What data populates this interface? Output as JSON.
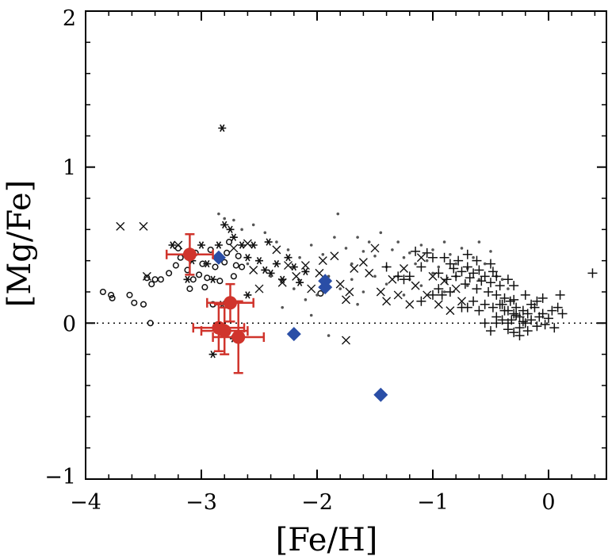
{
  "chart_data": {
    "type": "scatter",
    "title": "",
    "xlabel": "[Fe/H]",
    "ylabel": "[Mg/Fe]",
    "xlim": [
      -4,
      0.5
    ],
    "ylim": [
      -1,
      2
    ],
    "x_ticks": [
      -4,
      -3,
      -2,
      -1,
      0
    ],
    "y_ticks": [
      -1,
      0,
      1,
      2
    ],
    "x_tick_labels": [
      "−4",
      "−3",
      "−2",
      "−1",
      "0"
    ],
    "y_tick_labels": [
      "−1",
      "0",
      "1",
      "2"
    ],
    "reference_line": {
      "y": 0,
      "style": "dotted"
    },
    "grid": false,
    "legend": "none",
    "colors": {
      "red": "#d0342c",
      "blue": "#2a4ea6",
      "black": "#111111"
    },
    "series": [
      {
        "marker": "open-circle",
        "color": "#111111",
        "points": [
          [
            -3.85,
            0.2
          ],
          [
            -3.78,
            0.18
          ],
          [
            -3.77,
            0.16
          ],
          [
            -3.62,
            0.18
          ],
          [
            -3.58,
            0.13
          ],
          [
            -3.5,
            0.12
          ],
          [
            -3.47,
            0.29
          ],
          [
            -3.43,
            0.25
          ],
          [
            -3.4,
            0.28
          ],
          [
            -3.35,
            0.28
          ],
          [
            -3.28,
            0.32
          ],
          [
            -3.22,
            0.37
          ],
          [
            -3.18,
            0.42
          ],
          [
            -3.12,
            0.34
          ],
          [
            -3.07,
            0.28
          ],
          [
            -3.05,
            0.45
          ],
          [
            -3.02,
            0.31
          ],
          [
            -2.99,
            0.38
          ],
          [
            -2.95,
            0.29
          ],
          [
            -2.92,
            0.47
          ],
          [
            -2.88,
            0.36
          ],
          [
            -2.85,
            0.42
          ],
          [
            -2.84,
            0.27
          ],
          [
            -2.8,
            0.39
          ],
          [
            -2.78,
            0.45
          ],
          [
            -2.76,
            0.52
          ],
          [
            -2.72,
            0.3
          ],
          [
            -2.7,
            0.37
          ],
          [
            -2.68,
            0.43
          ],
          [
            -2.65,
            0.36
          ],
          [
            -2.97,
            0.23
          ],
          [
            -3.1,
            0.22
          ],
          [
            -3.2,
            0.48
          ],
          [
            -2.9,
            0.12
          ],
          [
            -3.44,
            0.0
          ],
          [
            -1.97,
            0.19
          ]
        ]
      },
      {
        "marker": "cross-x",
        "color": "#111111",
        "points": [
          [
            -3.7,
            0.62
          ],
          [
            -3.5,
            0.62
          ],
          [
            -3.47,
            0.3
          ],
          [
            -3.2,
            0.5
          ],
          [
            -2.72,
            0.48
          ],
          [
            -2.6,
            0.51
          ],
          [
            -2.5,
            0.22
          ],
          [
            -2.35,
            0.47
          ],
          [
            -2.25,
            0.37
          ],
          [
            -2.18,
            0.3
          ],
          [
            -2.1,
            0.37
          ],
          [
            -2.05,
            0.22
          ],
          [
            -1.98,
            0.32
          ],
          [
            -1.85,
            0.43
          ],
          [
            -1.8,
            0.25
          ],
          [
            -1.75,
            0.15
          ],
          [
            -1.72,
            0.2
          ],
          [
            -1.68,
            0.35
          ],
          [
            -1.6,
            0.39
          ],
          [
            -1.55,
            0.32
          ],
          [
            -1.5,
            0.48
          ],
          [
            -1.45,
            0.2
          ],
          [
            -1.4,
            0.14
          ],
          [
            -1.35,
            0.28
          ],
          [
            -1.3,
            0.18
          ],
          [
            -1.25,
            0.35
          ],
          [
            -1.2,
            0.12
          ],
          [
            -1.15,
            0.24
          ],
          [
            -1.1,
            0.42
          ],
          [
            -1.05,
            0.18
          ],
          [
            -1.0,
            0.3
          ],
          [
            -0.95,
            0.12
          ],
          [
            -0.9,
            0.27
          ],
          [
            -0.85,
            0.08
          ],
          [
            -0.8,
            0.22
          ],
          [
            -0.75,
            0.14
          ],
          [
            -1.75,
            -0.11
          ],
          [
            -1.95,
            0.4
          ],
          [
            -2.3,
            0.26
          ],
          [
            -2.55,
            0.34
          ]
        ]
      },
      {
        "marker": "asterisk",
        "color": "#111111",
        "points": [
          [
            -2.82,
            1.25
          ],
          [
            -3.25,
            0.5
          ],
          [
            -3.08,
            0.4
          ],
          [
            -3.0,
            0.5
          ],
          [
            -2.95,
            0.38
          ],
          [
            -2.85,
            0.5
          ],
          [
            -2.8,
            0.63
          ],
          [
            -2.75,
            0.6
          ],
          [
            -2.72,
            0.55
          ],
          [
            -2.65,
            0.5
          ],
          [
            -2.6,
            0.42
          ],
          [
            -2.55,
            0.5
          ],
          [
            -2.5,
            0.4
          ],
          [
            -2.45,
            0.34
          ],
          [
            -2.42,
            0.52
          ],
          [
            -2.4,
            0.32
          ],
          [
            -2.35,
            0.38
          ],
          [
            -2.3,
            0.28
          ],
          [
            -2.25,
            0.42
          ],
          [
            -2.2,
            0.36
          ],
          [
            -2.15,
            0.26
          ],
          [
            -2.1,
            0.33
          ],
          [
            -2.9,
            -0.2
          ],
          [
            -2.72,
            -0.1
          ],
          [
            -2.82,
            0.12
          ],
          [
            -2.9,
            0.28
          ],
          [
            -3.12,
            0.28
          ],
          [
            -2.6,
            0.18
          ]
        ]
      },
      {
        "marker": "dot",
        "color": "#555555",
        "points": [
          [
            -2.85,
            0.7
          ],
          [
            -2.8,
            0.67
          ],
          [
            -2.72,
            0.66
          ],
          [
            -2.65,
            0.6
          ],
          [
            -2.55,
            0.63
          ],
          [
            -2.45,
            0.58
          ],
          [
            -2.35,
            0.52
          ],
          [
            -2.25,
            0.47
          ],
          [
            -2.15,
            0.42
          ],
          [
            -2.05,
            0.5
          ],
          [
            -1.95,
            0.44
          ],
          [
            -1.85,
            0.55
          ],
          [
            -1.82,
            0.7
          ],
          [
            -1.75,
            0.48
          ],
          [
            -1.7,
            0.38
          ],
          [
            -1.65,
            0.55
          ],
          [
            -1.6,
            0.46
          ],
          [
            -1.55,
            0.52
          ],
          [
            -1.5,
            0.43
          ],
          [
            -1.45,
            0.58
          ],
          [
            -1.4,
            0.36
          ],
          [
            -1.35,
            0.47
          ],
          [
            -1.3,
            0.52
          ],
          [
            -1.25,
            0.42
          ],
          [
            -1.2,
            0.45
          ],
          [
            -1.15,
            0.38
          ],
          [
            -1.1,
            0.5
          ],
          [
            -1.05,
            0.4
          ],
          [
            -1.0,
            0.47
          ],
          [
            -0.95,
            0.36
          ],
          [
            -0.9,
            0.52
          ],
          [
            -0.85,
            0.44
          ],
          [
            -0.8,
            0.38
          ],
          [
            -0.75,
            0.48
          ],
          [
            -0.7,
            0.35
          ],
          [
            -0.65,
            0.42
          ],
          [
            -0.6,
            0.52
          ],
          [
            -0.55,
            0.38
          ],
          [
            -0.5,
            0.46
          ],
          [
            -0.45,
            0.3
          ],
          [
            -0.4,
            0.28
          ],
          [
            -0.35,
            0.22
          ],
          [
            -2.6,
            0.38
          ],
          [
            -2.4,
            0.3
          ],
          [
            -2.2,
            0.22
          ],
          [
            -2.0,
            0.18
          ],
          [
            -1.9,
            0.3
          ],
          [
            -1.8,
            0.22
          ],
          [
            -1.7,
            0.28
          ],
          [
            -1.6,
            0.2
          ],
          [
            -1.5,
            0.3
          ],
          [
            -1.4,
            0.25
          ],
          [
            -1.3,
            0.3
          ],
          [
            -1.2,
            0.28
          ],
          [
            -1.1,
            0.24
          ],
          [
            -1.0,
            0.32
          ],
          [
            -0.9,
            0.2
          ],
          [
            -0.8,
            0.3
          ],
          [
            -0.7,
            0.24
          ],
          [
            -0.6,
            0.28
          ],
          [
            -2.3,
            0.1
          ],
          [
            -2.1,
            0.15
          ],
          [
            -1.65,
            0.12
          ],
          [
            -1.25,
            0.18
          ],
          [
            -2.05,
            0.05
          ],
          [
            -1.9,
            -0.08
          ]
        ]
      },
      {
        "marker": "plus",
        "color": "#111111",
        "points": [
          [
            0.38,
            0.32
          ],
          [
            -0.95,
            0.32
          ],
          [
            -0.9,
            0.42
          ],
          [
            -0.88,
            0.28
          ],
          [
            -0.85,
            0.38
          ],
          [
            -0.82,
            0.35
          ],
          [
            -0.8,
            0.3
          ],
          [
            -0.78,
            0.4
          ],
          [
            -0.75,
            0.33
          ],
          [
            -0.72,
            0.25
          ],
          [
            -0.7,
            0.36
          ],
          [
            -0.68,
            0.29
          ],
          [
            -0.65,
            0.32
          ],
          [
            -0.62,
            0.22
          ],
          [
            -0.6,
            0.34
          ],
          [
            -0.58,
            0.27
          ],
          [
            -0.55,
            0.3
          ],
          [
            -0.52,
            0.2
          ],
          [
            -0.5,
            0.26
          ],
          [
            -0.48,
            0.33
          ],
          [
            -0.45,
            0.18
          ],
          [
            -0.42,
            0.24
          ],
          [
            -0.4,
            0.12
          ],
          [
            -0.38,
            0.16
          ],
          [
            -0.35,
            0.08
          ],
          [
            -0.33,
            0.14
          ],
          [
            -0.3,
            0.06
          ],
          [
            -0.28,
            0.1
          ],
          [
            -0.25,
            0.04
          ],
          [
            -0.22,
            0.08
          ],
          [
            -0.2,
            0.0
          ],
          [
            -0.18,
            0.06
          ],
          [
            -0.15,
            0.02
          ],
          [
            -0.12,
            0.1
          ],
          [
            -0.1,
            -0.02
          ],
          [
            -0.08,
            0.04
          ],
          [
            -0.05,
            0.06
          ],
          [
            -0.03,
            -0.01
          ],
          [
            0.0,
            0.03
          ],
          [
            0.03,
            0.08
          ],
          [
            0.05,
            -0.03
          ],
          [
            0.08,
            0.1
          ],
          [
            0.12,
            0.06
          ],
          [
            -0.48,
            0.1
          ],
          [
            -0.45,
            0.04
          ],
          [
            -0.42,
            0.12
          ],
          [
            -0.4,
            0.02
          ],
          [
            -0.38,
            0.08
          ],
          [
            -0.35,
            -0.04
          ],
          [
            -0.32,
            0.02
          ],
          [
            -0.3,
            -0.06
          ],
          [
            -0.28,
            0.05
          ],
          [
            -0.25,
            -0.03
          ],
          [
            -0.22,
            0.01
          ],
          [
            -0.55,
            0.12
          ],
          [
            -0.6,
            0.08
          ],
          [
            -0.65,
            0.14
          ],
          [
            -0.7,
            0.1
          ],
          [
            -1.0,
            0.42
          ],
          [
            -1.05,
            0.45
          ],
          [
            -1.1,
            0.36
          ],
          [
            -1.2,
            0.3
          ],
          [
            -1.25,
            0.28
          ],
          [
            -1.3,
            0.3
          ],
          [
            -1.4,
            0.36
          ],
          [
            -0.92,
            0.18
          ],
          [
            -0.85,
            0.2
          ],
          [
            -1.0,
            0.18
          ],
          [
            -0.55,
            0.0
          ],
          [
            -0.5,
            -0.05
          ],
          [
            -0.45,
            0.0
          ],
          [
            -0.3,
            0.15
          ],
          [
            -0.18,
            -0.05
          ],
          [
            -0.15,
            0.12
          ],
          [
            -0.35,
            0.0
          ],
          [
            0.1,
            0.18
          ],
          [
            -0.25,
            -0.08
          ],
          [
            -0.75,
            0.1
          ],
          [
            -0.62,
            0.4
          ],
          [
            -0.5,
            0.38
          ],
          [
            -0.45,
            0.3
          ],
          [
            -0.35,
            0.28
          ],
          [
            -0.3,
            0.24
          ],
          [
            -0.2,
            0.18
          ],
          [
            -0.1,
            0.14
          ],
          [
            -0.05,
            0.16
          ],
          [
            -0.95,
            0.22
          ],
          [
            -1.1,
            0.14
          ],
          [
            -1.15,
            0.46
          ],
          [
            -0.7,
            0.44
          ]
        ]
      },
      {
        "marker": "diamond",
        "color": "#2a4ea6",
        "points": [
          [
            -2.85,
            0.42
          ],
          [
            -1.93,
            0.27
          ],
          [
            -1.93,
            0.23
          ],
          [
            -2.2,
            -0.07
          ],
          [
            -1.45,
            -0.46
          ]
        ]
      },
      {
        "marker": "filled-circle-errorbar",
        "color": "#d0342c",
        "points": [
          {
            "x": -3.1,
            "y": 0.44,
            "xerr": 0.2,
            "yerr": 0.13
          },
          {
            "x": -2.75,
            "y": 0.13,
            "xerr": 0.2,
            "yerr": 0.12
          },
          {
            "x": -2.85,
            "y": -0.03,
            "xerr": 0.22,
            "yerr": 0.15
          },
          {
            "x": -2.8,
            "y": -0.05,
            "xerr": 0.2,
            "yerr": 0.15
          },
          {
            "x": -2.68,
            "y": -0.09,
            "xerr": 0.22,
            "yerr": 0.23
          }
        ]
      }
    ]
  }
}
